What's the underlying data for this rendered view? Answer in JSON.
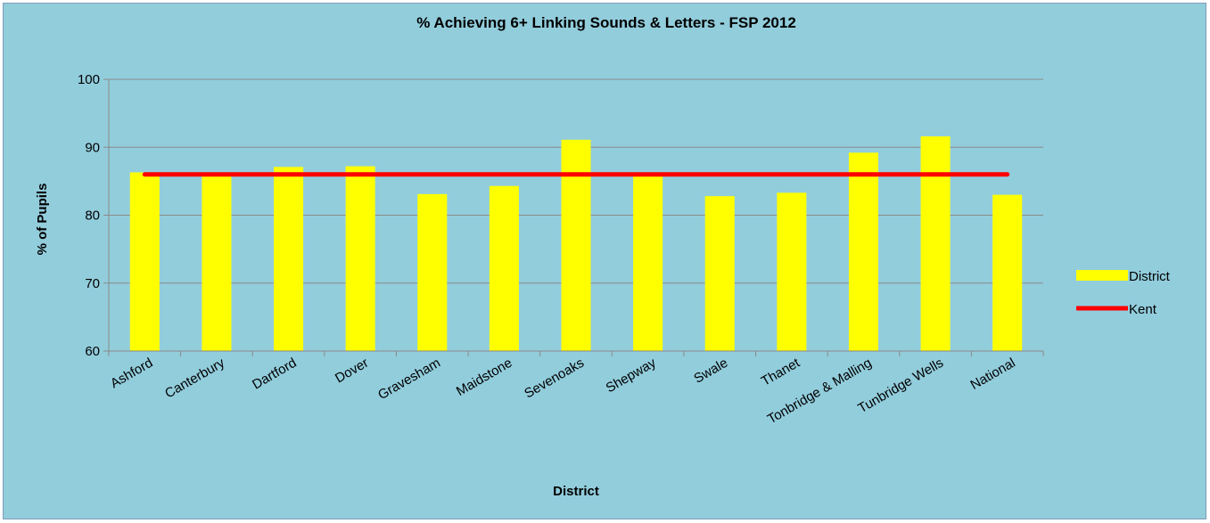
{
  "chart_data": {
    "type": "bar",
    "title": "% Achieving 6+ Linking Sounds & Letters - FSP 2012",
    "xlabel": "District",
    "ylabel": "% of Pupils",
    "ylim": [
      60,
      100
    ],
    "yticks": [
      60,
      70,
      80,
      90,
      100
    ],
    "grid": true,
    "legend_position": "right",
    "categories": [
      "Ashford",
      "Canterbury",
      "Dartford",
      "Dover",
      "Gravesham",
      "Maidstone",
      "Sevenoaks",
      "Shepway",
      "Swale",
      "Thanet",
      "Tonbridge & Malling",
      "Tunbridge Wells",
      "National"
    ],
    "series": [
      {
        "name": "District",
        "type": "bar",
        "color": "#ffff00",
        "values": [
          86.3,
          85.8,
          87.1,
          87.2,
          83.1,
          84.3,
          91.1,
          85.9,
          82.8,
          83.3,
          89.2,
          91.6,
          83.0
        ]
      },
      {
        "name": "Kent",
        "type": "line",
        "color": "#ff0000",
        "values": [
          86,
          86,
          86,
          86,
          86,
          86,
          86,
          86,
          86,
          86,
          86,
          86,
          86
        ]
      }
    ],
    "colors": {
      "background": "#92cddc",
      "grid": "#8a8a8a"
    }
  }
}
